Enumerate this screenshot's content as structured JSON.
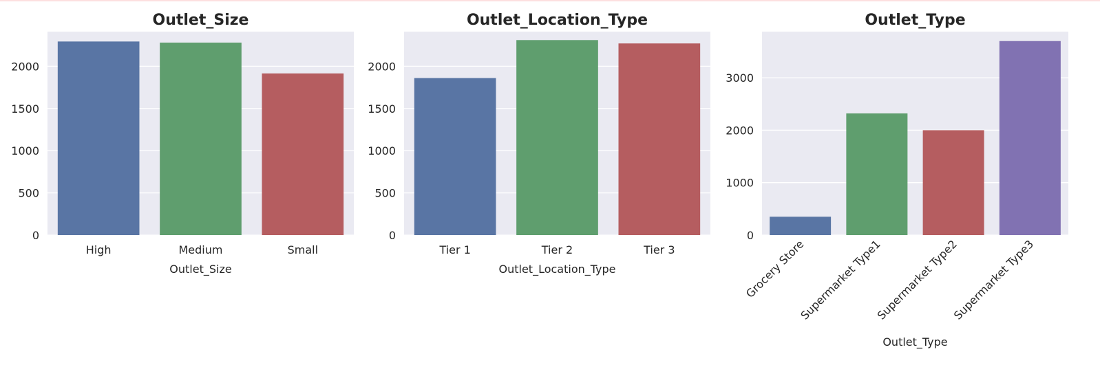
{
  "chart_data": [
    {
      "type": "bar",
      "title": "Outlet_Size",
      "xlabel": "Outlet_Size",
      "ylabel": "",
      "categories": [
        "High",
        "Medium",
        "Small"
      ],
      "values": [
        2293,
        2280,
        1915
      ],
      "ylim": [
        0,
        2410
      ],
      "yticks": [
        0,
        500,
        1000,
        1500,
        2000
      ],
      "colors": [
        "#5975a4",
        "#5f9e6e",
        "#b55d60"
      ],
      "grid": true
    },
    {
      "type": "bar",
      "title": "Outlet_Location_Type",
      "xlabel": "Outlet_Location_Type",
      "ylabel": "",
      "categories": [
        "Tier 1",
        "Tier 2",
        "Tier 3"
      ],
      "values": [
        1860,
        2310,
        2270
      ],
      "ylim": [
        0,
        2410
      ],
      "yticks": [
        0,
        500,
        1000,
        1500,
        2000
      ],
      "colors": [
        "#5975a4",
        "#5f9e6e",
        "#b55d60"
      ],
      "grid": true
    },
    {
      "type": "bar",
      "title": "Outlet_Type",
      "xlabel": "Outlet_Type",
      "ylabel": "",
      "categories": [
        "Grocery Store",
        "Supermarket Type1",
        "Supermarket Type2",
        "Supermarket Type3"
      ],
      "values": [
        350,
        2320,
        2000,
        3700
      ],
      "ylim": [
        0,
        3880
      ],
      "yticks": [
        0,
        1000,
        2000,
        3000
      ],
      "colors": [
        "#5975a4",
        "#5f9e6e",
        "#b55d60",
        "#8172b2"
      ],
      "grid": true,
      "rotate_xticks": true
    }
  ]
}
